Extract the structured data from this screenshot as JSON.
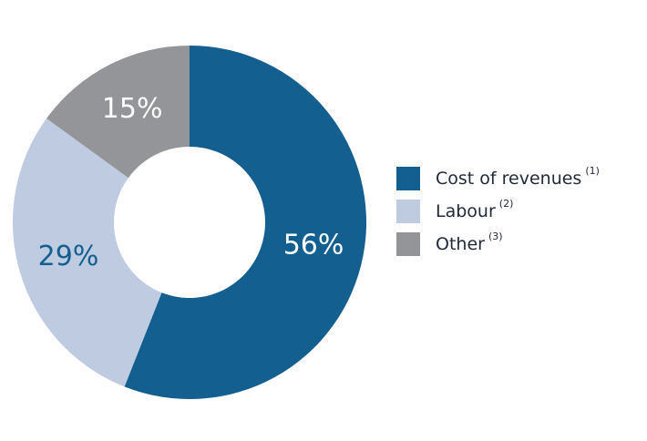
{
  "chart_data": {
    "type": "donut",
    "categories": [
      "Cost of revenues",
      "Labour",
      "Other"
    ],
    "footnotes": [
      "(1)",
      "(2)",
      "(3)"
    ],
    "values": [
      56,
      29,
      15
    ],
    "value_labels": [
      "56%",
      "29%",
      "15%"
    ],
    "colors": [
      "#135f8f",
      "#bfcbe0",
      "#939598"
    ],
    "label_colors": [
      "#ffffff",
      "#135f8f",
      "#ffffff"
    ],
    "legend": "right"
  }
}
